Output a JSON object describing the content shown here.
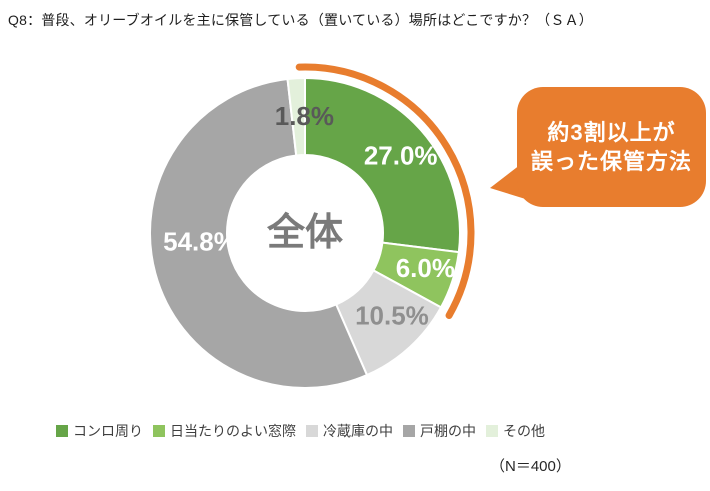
{
  "page": {
    "title": "Q8：普段、オリーブオイルを主に保管している（置いている）場所はどこですか？（ＳＡ）"
  },
  "chart_data": {
    "type": "pie",
    "subtype": "donut",
    "center_text": "全体",
    "categories": [
      "コンロ周り",
      "日当たりのよい窓際",
      "冷蔵庫の中",
      "戸棚の中",
      "その他"
    ],
    "values": [
      27.0,
      6.0,
      10.5,
      54.8,
      1.8
    ],
    "data_labels": [
      "27.0%",
      "6.0%",
      "10.5%",
      "54.8%",
      "1.8%"
    ],
    "colors": [
      "#66A548",
      "#8FC45E",
      "#D8D8D8",
      "#A6A6A6",
      "#E3F0DB"
    ],
    "data_label_colors": [
      "#FFFFFF",
      "#FFFFFF",
      "#8F8F8F",
      "#FFFFFF",
      "#595959"
    ],
    "start_angle_deg": 0,
    "direction": "clockwise",
    "legend_position": "bottom",
    "sample_size_label": "（N＝400）",
    "highlight_arc": {
      "covers_categories": [
        "コンロ周り",
        "日当たりのよい窓際"
      ],
      "covers_pct": 33.0,
      "color": "#E87D2E"
    },
    "callout": {
      "line1": "約3割以上が",
      "line2": "誤った保管方法",
      "bg_color": "#E87D2E",
      "text_color": "#FFFFFF"
    }
  }
}
